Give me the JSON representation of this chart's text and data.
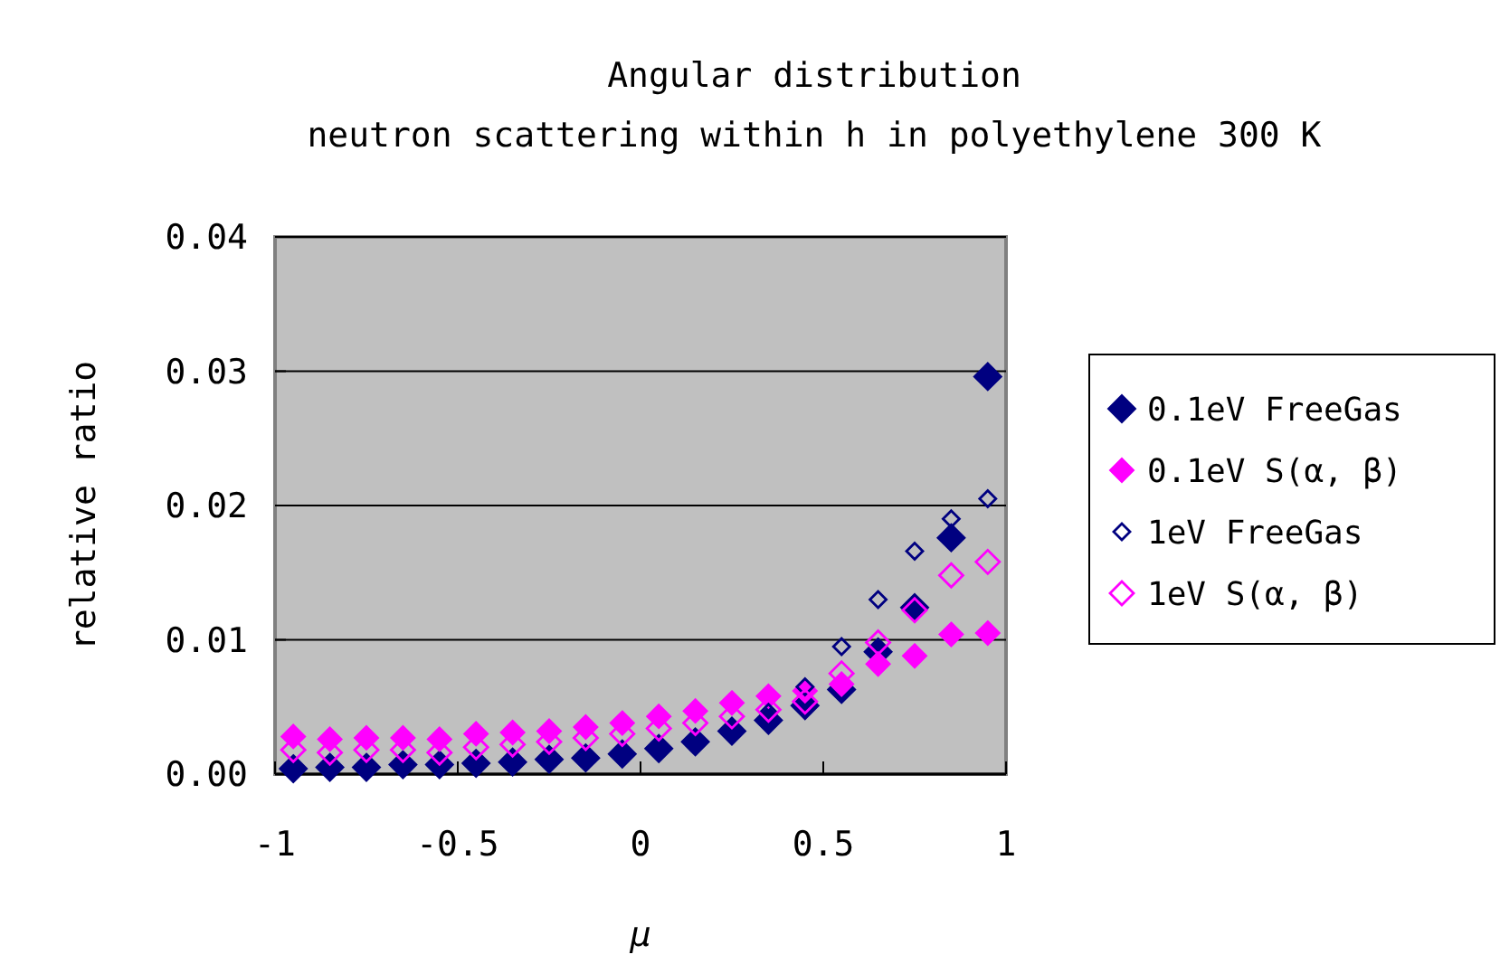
{
  "chart_data": {
    "type": "scatter",
    "title": "Angular distribution",
    "subtitle": "neutron scattering within h in polyethylene 300 K",
    "xlabel": "μ",
    "ylabel": "relative ratio",
    "x": [
      -0.95,
      -0.85,
      -0.75,
      -0.65,
      -0.55,
      -0.45,
      -0.35,
      -0.25,
      -0.15,
      -0.05,
      0.05,
      0.15,
      0.25,
      0.35,
      0.45,
      0.55,
      0.65,
      0.75,
      0.85,
      0.95
    ],
    "series": [
      {
        "name": "0.1eV FreeGas",
        "color": "#000080",
        "values": [
          0.0004,
          0.0005,
          0.0005,
          0.0007,
          0.0007,
          0.0008,
          0.0009,
          0.0011,
          0.0012,
          0.0015,
          0.0019,
          0.0024,
          0.0032,
          0.004,
          0.0051,
          0.0063,
          0.0091,
          0.0124,
          0.0176,
          0.0296
        ]
      },
      {
        "name": "0.1eV S(α, β)",
        "color": "#ff00ff",
        "values": [
          0.0028,
          0.0026,
          0.0027,
          0.0027,
          0.0026,
          0.003,
          0.0031,
          0.0032,
          0.0035,
          0.0038,
          0.0043,
          0.0047,
          0.0053,
          0.0058,
          0.0062,
          0.0067,
          0.0082,
          0.0088,
          0.0104,
          0.0105
        ]
      },
      {
        "name": "1eV FreeGas",
        "color": "#000080",
        "values": [
          null,
          null,
          null,
          null,
          null,
          null,
          null,
          null,
          null,
          null,
          null,
          null,
          null,
          0.0046,
          0.0065,
          0.0095,
          0.013,
          0.0166,
          0.019,
          0.0205
        ]
      },
      {
        "name": "1eV S(α, β)",
        "color": "#ff00ff",
        "values": [
          0.0018,
          0.0016,
          0.0018,
          0.0018,
          0.0016,
          0.002,
          0.0022,
          0.0024,
          0.0027,
          0.003,
          0.0034,
          0.0038,
          0.0043,
          0.0048,
          0.0054,
          0.0075,
          0.0098,
          0.0122,
          0.0148,
          0.0158
        ]
      }
    ],
    "xlim": [
      -1,
      1
    ],
    "xticks": [
      -1,
      -0.5,
      0,
      0.5,
      1
    ],
    "ylim": [
      0,
      0.04
    ],
    "yticks": [
      {
        "value": 0,
        "label": "0.00"
      },
      {
        "value": 0.01,
        "label": "0.01"
      },
      {
        "value": 0.02,
        "label": "0.02"
      },
      {
        "value": 0.03,
        "label": "0.03"
      },
      {
        "value": 0.04,
        "label": "0.04"
      }
    ],
    "grid": "y",
    "legend": "right",
    "marker": "diamond"
  }
}
